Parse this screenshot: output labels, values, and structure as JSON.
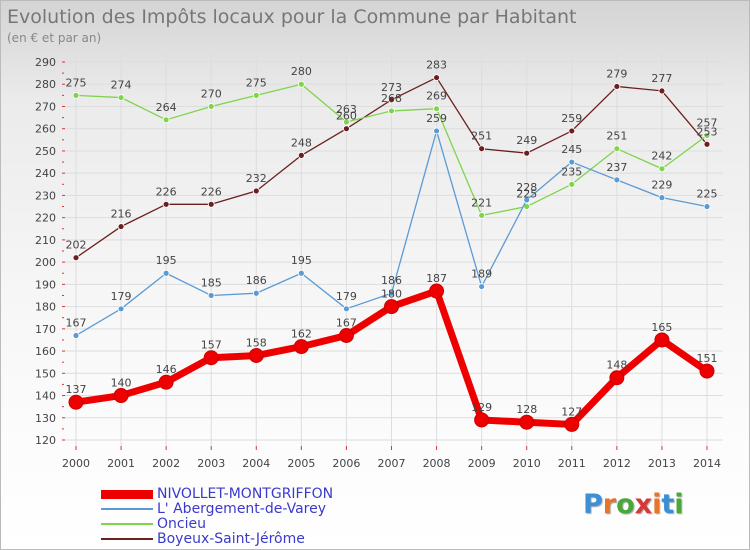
{
  "title": "Evolution des Impôts locaux pour la Commune par Habitant",
  "subtitle": "(en € et par an)",
  "logo_text": "Proxiti",
  "logo_colors": [
    "#3b8fd6",
    "#e8732a",
    "#4aa83a",
    "#d53a3a",
    "#e8732a",
    "#3b8fd6",
    "#4aa83a"
  ],
  "chart_data": {
    "type": "line",
    "title": "Evolution des Impôts locaux pour la Commune par Habitant",
    "subtitle": "(en € et par an)",
    "x": [
      "2000",
      "2001",
      "2002",
      "2003",
      "2004",
      "2005",
      "2006",
      "2007",
      "2008",
      "2009",
      "2010",
      "2011",
      "2012",
      "2013",
      "2014"
    ],
    "ylim": [
      120,
      290
    ],
    "yticks": [
      120,
      130,
      140,
      150,
      160,
      170,
      180,
      190,
      200,
      210,
      220,
      230,
      240,
      250,
      260,
      270,
      280,
      290
    ],
    "grid": true,
    "legend_position": "bottom-left",
    "series": [
      {
        "name": "NIVOLLET-MONTGRIFFON",
        "color": "#ee0000",
        "text_color": "#3a3acc",
        "bold": true,
        "values": [
          137,
          140,
          146,
          157,
          158,
          162,
          167,
          180,
          187,
          129,
          128,
          127,
          148,
          165,
          151
        ]
      },
      {
        "name": "L' Abergement-de-Varey",
        "color": "#5b9bd5",
        "text_color": "#3a3acc",
        "bold": false,
        "values": [
          167,
          179,
          195,
          185,
          186,
          195,
          179,
          186,
          259,
          189,
          228,
          245,
          237,
          229,
          225
        ]
      },
      {
        "name": "Oncieu",
        "color": "#7fd44c",
        "text_color": "#3a3acc",
        "bold": false,
        "values": [
          275,
          274,
          264,
          270,
          275,
          280,
          263,
          268,
          269,
          221,
          225,
          235,
          251,
          242,
          257
        ]
      },
      {
        "name": "Boyeux-Saint-Jérôme",
        "color": "#6b1f1f",
        "text_color": "#3a3acc",
        "bold": false,
        "values": [
          202,
          216,
          226,
          226,
          232,
          248,
          260,
          273,
          283,
          251,
          249,
          259,
          279,
          277,
          253
        ]
      }
    ]
  }
}
